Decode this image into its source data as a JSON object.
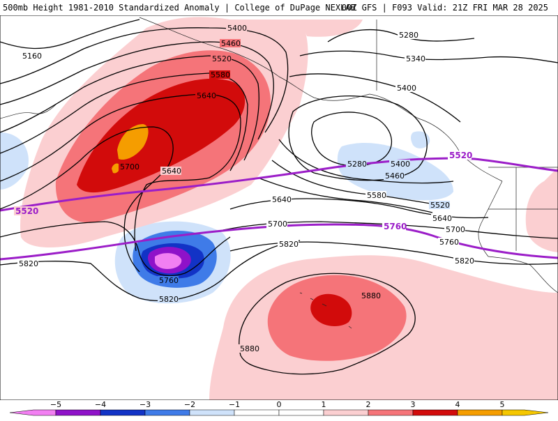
{
  "header": {
    "title": "500mb Height 1981-2010 Standardized Anomaly | College of DuPage NEXLAB",
    "run_info": "00Z GFS | F093 Valid: 21Z FRI MAR 28 2025"
  },
  "colors": {
    "neg5": "#f27ff2",
    "neg4": "#8f12c9",
    "neg3": "#1233c6",
    "neg2": "#3f7be8",
    "neg1": "#cfe2fa",
    "pos1": "#fbcfd1",
    "pos2": "#f57479",
    "pos3": "#d20b0b",
    "pos4": "#f59d00",
    "pos5": "#f5c700",
    "contour": "#000000",
    "highlight_contour": "#9b1dc8"
  },
  "contour_labels": [
    "5160",
    "5400",
    "5460",
    "5520",
    "5580",
    "5640",
    "5700",
    "5640",
    "5640",
    "5700",
    "5760",
    "5820",
    "5820",
    "5820",
    "5880",
    "5880",
    "5280",
    "5340",
    "5400",
    "5280",
    "5400",
    "5460",
    "5580",
    "5520",
    "5640",
    "5700",
    "5760",
    "5820"
  ],
  "highlight_labels": [
    "5520",
    "5520",
    "5760"
  ],
  "colorbar": {
    "ticks": [
      "−5",
      "−4",
      "−3",
      "−2",
      "−1",
      "0",
      "1",
      "2",
      "3",
      "4",
      "5"
    ]
  }
}
